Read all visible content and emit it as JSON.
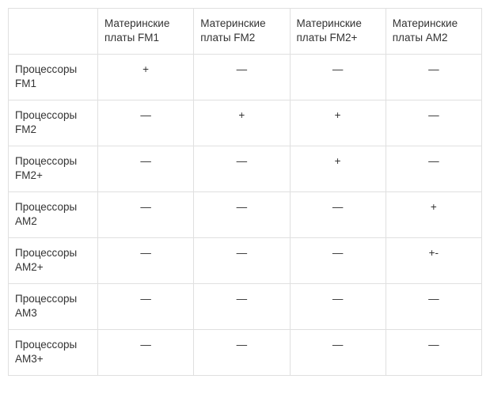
{
  "table": {
    "type": "table",
    "text_color": "#333333",
    "border_color": "#e0e0e0",
    "background_color": "#ffffff",
    "font_size_pt": 10,
    "column_headers": [
      "Материнские платы FM1",
      "Материнские платы FM2",
      "Материнские платы FM2+",
      "Материнские платы AM2"
    ],
    "row_headers": [
      "Процессоры FM1",
      "Процессоры FM2",
      "Процессоры FM2+",
      "Процессоры AM2",
      "Процессоры AM2+",
      "Процессоры AM3",
      "Процессоры AM3+"
    ],
    "cells": [
      [
        "+",
        "—",
        "—",
        "—"
      ],
      [
        "—",
        "+",
        "+",
        "—"
      ],
      [
        "—",
        "—",
        "+",
        "—"
      ],
      [
        "—",
        "—",
        "—",
        "+"
      ],
      [
        "—",
        "—",
        "—",
        "+-"
      ],
      [
        "—",
        "—",
        "—",
        "—"
      ],
      [
        "—",
        "—",
        "—",
        "—"
      ]
    ]
  }
}
